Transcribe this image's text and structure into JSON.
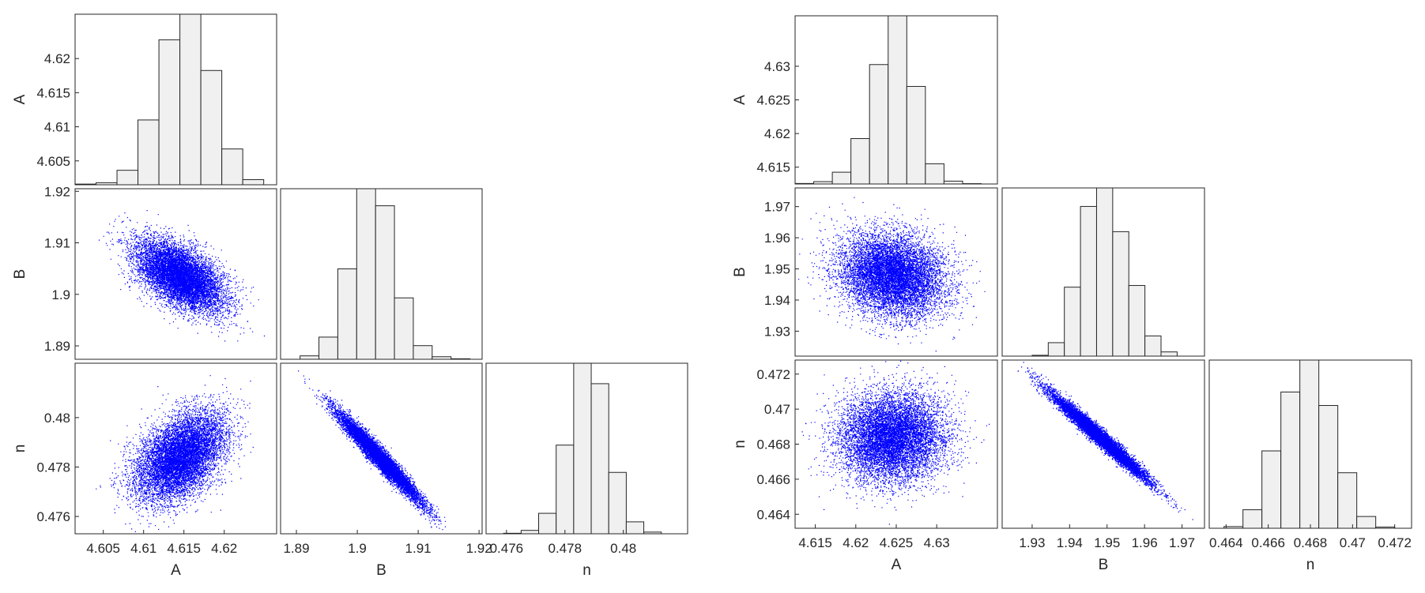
{
  "chart_data": [
    {
      "type": "scatter-matrix",
      "title": "",
      "variables": [
        "A",
        "B",
        "n"
      ],
      "variable_stats": {
        "A": {
          "mean": 4.6145,
          "sd": 0.00275,
          "range": [
            4.6015,
            4.6265
          ]
        },
        "B": {
          "mean": 1.9035,
          "sd": 0.0034,
          "range": [
            1.8874,
            1.9205
          ]
        },
        "n": {
          "mean": 0.4784,
          "sd": 0.0009,
          "range": [
            0.4753,
            0.4822
          ]
        }
      },
      "histograms": {
        "A": {
          "bin_edges": [
            4.6015,
            4.6041,
            4.6067,
            4.6093,
            4.6119,
            4.6145,
            4.6171,
            4.6197,
            4.6223,
            4.6249
          ],
          "relative_heights": [
            0.004,
            0.012,
            0.085,
            0.38,
            0.85,
            1.0,
            0.67,
            0.21,
            0.03
          ]
        },
        "B": {
          "bin_edges": [
            1.8906,
            1.8937,
            1.8968,
            1.8999,
            1.903,
            1.9061,
            1.9092,
            1.9123,
            1.9154,
            1.9185
          ],
          "relative_heights": [
            0.02,
            0.13,
            0.53,
            1.0,
            0.9,
            0.36,
            0.08,
            0.015,
            0.003
          ]
        },
        "n": {
          "bin_edges": [
            0.4759,
            0.4765,
            0.4771,
            0.4777,
            0.4783,
            0.4789,
            0.4795,
            0.4801,
            0.4807,
            0.4813
          ],
          "relative_heights": [
            0.003,
            0.02,
            0.12,
            0.52,
            1.0,
            0.88,
            0.36,
            0.07,
            0.01
          ]
        }
      },
      "scatter": {
        "A-B": {
          "correlation": -0.55
        },
        "A-n": {
          "correlation": 0.45
        },
        "B-n": {
          "correlation": -0.97
        }
      },
      "point_color": "#0000ff",
      "bar_color": "#f0f0f0",
      "axes": {
        "A": {
          "lim": [
            4.6015,
            4.6265
          ],
          "ticks": [
            4.605,
            4.61,
            4.615,
            4.62
          ],
          "tick_labels": [
            "4.605",
            "4.61",
            "4.615",
            "4.62"
          ]
        },
        "B": {
          "lim": [
            1.8874,
            1.9205
          ],
          "ticks": [
            1.89,
            1.9,
            1.91,
            1.92
          ],
          "tick_labels": [
            "1.89",
            "1.9",
            "1.91",
            "1.92"
          ]
        },
        "n": {
          "lim": [
            0.4753,
            0.4822
          ],
          "ticks": [
            0.476,
            0.478,
            0.48
          ],
          "tick_labels": [
            "0.476",
            "0.478",
            "0.48"
          ]
        }
      },
      "grid": false
    },
    {
      "type": "scatter-matrix",
      "title": "",
      "variables": [
        "A",
        "B",
        "n"
      ],
      "variable_stats": {
        "A": {
          "mean": 4.6245,
          "sd": 0.0032,
          "range": [
            4.6125,
            4.6375
          ]
        },
        "B": {
          "mean": 1.948,
          "sd": 0.0065,
          "range": [
            1.922,
            1.976
          ]
        },
        "n": {
          "mean": 0.4684,
          "sd": 0.00125,
          "range": [
            0.4632,
            0.4728
          ]
        }
      },
      "histograms": {
        "A": {
          "bin_edges": [
            4.6125,
            4.6148,
            4.6171,
            4.6194,
            4.6217,
            4.624,
            4.6263,
            4.6286,
            4.6309,
            4.6332,
            4.6355
          ],
          "relative_heights": [
            0.003,
            0.014,
            0.07,
            0.27,
            0.71,
            1.0,
            0.58,
            0.12,
            0.017,
            0.002
          ]
        },
        "B": {
          "bin_edges": [
            1.93,
            1.9343,
            1.9386,
            1.9429,
            1.9472,
            1.9515,
            1.9558,
            1.9601,
            1.9644,
            1.9687
          ],
          "relative_heights": [
            0.005,
            0.08,
            0.41,
            0.89,
            1.0,
            0.74,
            0.42,
            0.12,
            0.025
          ]
        },
        "n": {
          "bin_edges": [
            0.4639,
            0.4648,
            0.4657,
            0.4666,
            0.4675,
            0.4684,
            0.4693,
            0.4702,
            0.4711,
            0.472
          ],
          "relative_heights": [
            0.01,
            0.11,
            0.46,
            0.81,
            1.0,
            0.73,
            0.33,
            0.07,
            0.007
          ]
        }
      },
      "scatter": {
        "A-B": {
          "correlation": -0.15
        },
        "A-n": {
          "correlation": 0.05
        },
        "B-n": {
          "correlation": -0.98
        }
      },
      "point_color": "#0000ff",
      "bar_color": "#f0f0f0",
      "axes": {
        "A": {
          "lim": [
            4.6125,
            4.6375
          ],
          "ticks": [
            4.615,
            4.62,
            4.625,
            4.63
          ],
          "tick_labels": [
            "4.615",
            "4.62",
            "4.625",
            "4.63"
          ]
        },
        "B": {
          "lim": [
            1.922,
            1.976
          ],
          "ticks": [
            1.93,
            1.94,
            1.95,
            1.96,
            1.97
          ],
          "tick_labels": [
            "1.93",
            "1.94",
            "1.95",
            "1.96",
            "1.97"
          ]
        },
        "n": {
          "lim": [
            0.4632,
            0.4728
          ],
          "ticks": [
            0.464,
            0.466,
            0.468,
            0.47,
            0.472
          ],
          "tick_labels": [
            "0.464",
            "0.466",
            "0.468",
            "0.47",
            "0.472"
          ]
        }
      },
      "grid": false
    }
  ]
}
